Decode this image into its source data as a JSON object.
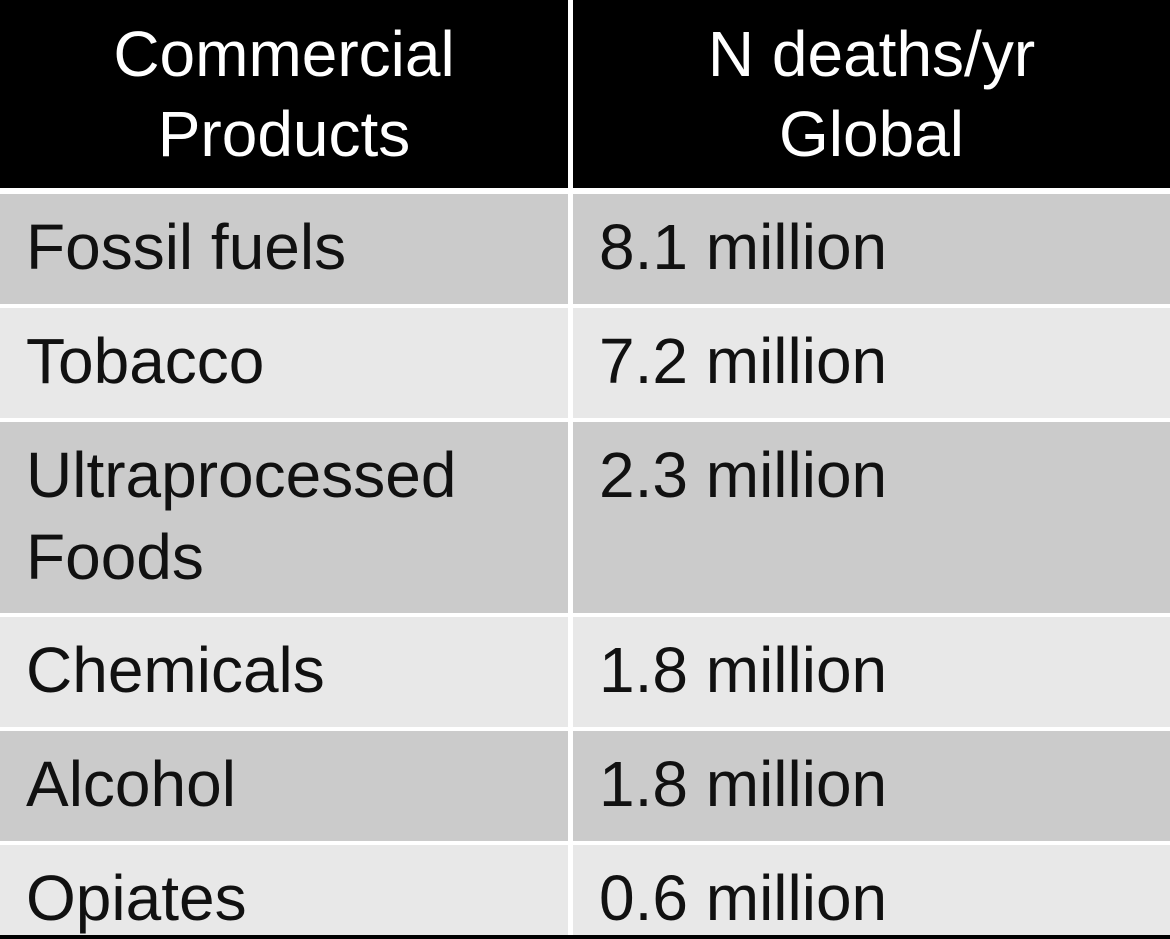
{
  "colors": {
    "header_bg": "#000000",
    "header_text": "#ffffff",
    "row_dark": "#cbcbcb",
    "row_light": "#e8e8e8",
    "divider": "#ffffff",
    "text": "#111111"
  },
  "chart_data": {
    "type": "table",
    "columns": [
      "Commercial\nProducts",
      "N deaths/yr\nGlobal"
    ],
    "rows": [
      [
        "Fossil fuels",
        "8.1 million"
      ],
      [
        "Tobacco",
        "7.2 million"
      ],
      [
        "Ultraprocessed\nFoods",
        "2.3 million"
      ],
      [
        "Chemicals",
        "1.8 million"
      ],
      [
        "Alcohol",
        "1.8 million"
      ],
      [
        "Opiates",
        "0.6 million"
      ]
    ]
  }
}
